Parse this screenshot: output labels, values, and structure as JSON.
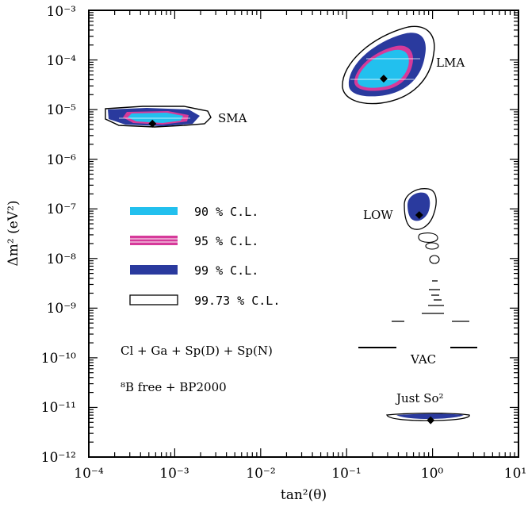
{
  "chart_data": {
    "type": "contour",
    "xlabel": "tan²(θ)",
    "ylabel": "Δm² (eV²)",
    "x_scale": "log",
    "y_scale": "log",
    "xlim": [
      0.0001,
      10
    ],
    "ylim": [
      1e-12,
      0.001
    ],
    "x_tick_labels": [
      "10⁻⁴",
      "10⁻³",
      "10⁻²",
      "10⁻¹",
      "10⁰",
      "10¹"
    ],
    "y_tick_labels": [
      "10⁻¹²",
      "10⁻¹¹",
      "10⁻¹⁰",
      "10⁻⁹",
      "10⁻⁸",
      "10⁻⁷",
      "10⁻⁶",
      "10⁻⁵",
      "10⁻⁴",
      "10⁻³"
    ],
    "grid": false,
    "legend_position": "middle-left",
    "legend": [
      {
        "label": "90 % C.L.",
        "color": "#22c0ee"
      },
      {
        "label": "95 % C.L.",
        "color": "#d63a9a"
      },
      {
        "label": "99 % C.L.",
        "color": "#2a3a9e"
      },
      {
        "label": "99.73 % C.L.",
        "color": "#ffffff"
      }
    ],
    "regions": [
      {
        "name": "SMA",
        "best_fit": {
          "x": 0.00055,
          "y": 5.2e-06
        }
      },
      {
        "name": "LMA",
        "best_fit": {
          "x": 0.27,
          "y": 4.2e-05
        }
      },
      {
        "name": "LOW",
        "best_fit": {
          "x": 0.7,
          "y": 7.5e-08
        }
      },
      {
        "name": "VAC",
        "best_fit": null
      },
      {
        "name": "Just So²",
        "best_fit": {
          "x": 0.95,
          "y": 5.5e-12
        }
      }
    ],
    "annotations": [
      "Cl + Ga + Sp(D) + Sp(N)",
      "⁸B free + BP2000"
    ]
  },
  "colors": {
    "cl90": "#22c0ee",
    "cl95": "#d63a9a",
    "cl99": "#2a3a9e",
    "cl9973": "#ffffff",
    "line": "#000000"
  }
}
